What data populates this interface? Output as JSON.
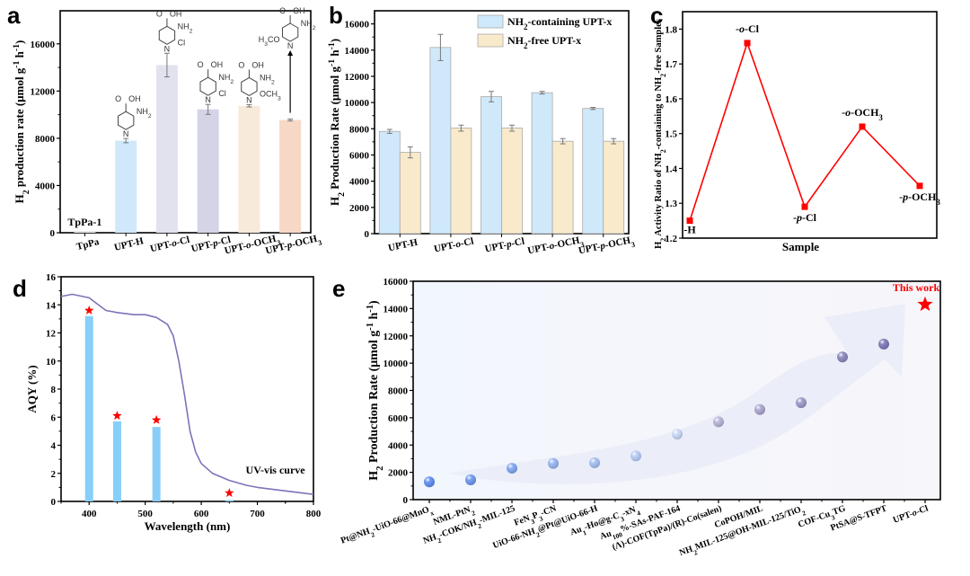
{
  "figure": {
    "panels": [
      "a",
      "b",
      "c",
      "d",
      "e"
    ]
  },
  "chart_data": [
    {
      "id": "a",
      "type": "bar",
      "panel_label": "a",
      "title": "",
      "xlabel": "",
      "ylabel": "H2 production rate (μmol g-1 h-1)",
      "ylabel_parts": {
        "pre": "H",
        "sub": "2",
        "post": " production rate (μmol g",
        "sup1": "-1",
        "mid": " h",
        "sup2": "-1",
        "end": ")"
      },
      "ylim": [
        0,
        18800
      ],
      "yticks": [
        0,
        4000,
        8000,
        12000,
        16000
      ],
      "categories": [
        "TpPa",
        "UPT-H",
        "UPT-o-Cl",
        "UPT-p-Cl",
        "UPT-o-OCH3",
        "UPT-p-OCH3"
      ],
      "values": [
        150,
        7800,
        14200,
        10450,
        10750,
        9550
      ],
      "errors": [
        0,
        180,
        1000,
        420,
        100,
        80
      ],
      "colors": [
        "#e6e6e6",
        "#cfe9fb",
        "#e2e2ef",
        "#d5d3e6",
        "#f8eadb",
        "#f7d8c6"
      ],
      "annotations": [
        {
          "category": "TpPa",
          "text": "TpPa-1"
        }
      ],
      "structures": [
        {
          "category": "UPT-H",
          "substituents": [
            "O=C-OH",
            "NH2",
            "N"
          ]
        },
        {
          "category": "UPT-o-Cl",
          "substituents": [
            "O=C-OH",
            "NH2",
            "N",
            "Cl"
          ]
        },
        {
          "category": "UPT-p-Cl",
          "substituents": [
            "O=C-OH",
            "NH2",
            "Cl",
            "N"
          ]
        },
        {
          "category": "UPT-o-OCH3",
          "substituents": [
            "O=C-OH",
            "NH2",
            "N",
            "OCH3"
          ]
        },
        {
          "category": "UPT-p-OCH3",
          "substituents": [
            "O=C-OH",
            "NH2",
            "H3CO",
            "N"
          ]
        }
      ],
      "grid": false
    },
    {
      "id": "b",
      "type": "bar",
      "panel_label": "b",
      "title": "",
      "xlabel": "",
      "ylabel": "H2 Production Rate (μmol g-1 h-1)",
      "ylabel_parts": {
        "pre": "H",
        "sub": "2",
        "post": " Production Rate (μmol g",
        "sup1": "-1",
        "mid": " h",
        "sup2": "-1",
        "end": ")"
      },
      "ylim": [
        0,
        17000
      ],
      "yticks": [
        0,
        2000,
        4000,
        6000,
        8000,
        10000,
        12000,
        14000,
        16000
      ],
      "categories": [
        "UPT-H",
        "UPT-o-Cl",
        "UPT-p-Cl",
        "UPT-o-OCH3",
        "UPT-p-OCH3"
      ],
      "series": [
        {
          "name": "NH2-containing UPT-x",
          "legend": {
            "pre": "NH",
            "sub": "2",
            "post": "-containing UPT-x"
          },
          "color": "#cfe9fb",
          "values": [
            7800,
            14200,
            10450,
            10750,
            9550
          ],
          "errors": [
            150,
            1000,
            400,
            100,
            80
          ]
        },
        {
          "name": "NH2-free UPT-x",
          "legend": {
            "pre": "NH",
            "sub": "2",
            "post": "-free UPT-x"
          },
          "color": "#f8eacb",
          "values": [
            6200,
            8050,
            8050,
            7050,
            7050
          ],
          "errors": [
            420,
            230,
            230,
            200,
            200
          ]
        }
      ],
      "legend_position": "top-right",
      "grid": false
    },
    {
      "id": "c",
      "type": "line",
      "panel_label": "c",
      "title": "",
      "xlabel": "Sample",
      "ylabel": "H2 Activity Ratio of NH2-containing to NH2-free Samples",
      "ylim": [
        1.2,
        1.85
      ],
      "yticks": [
        1.2,
        1.3,
        1.4,
        1.5,
        1.6,
        1.7,
        1.8
      ],
      "x": [
        "-H",
        "-o-Cl",
        "-p-Cl",
        "-o-OCH3",
        "-p-OCH3"
      ],
      "values": [
        1.25,
        1.76,
        1.29,
        1.52,
        1.35
      ],
      "point_labels": [
        "-H",
        "-o-Cl",
        "-p-Cl",
        "-o-OCH3",
        "-p-OCH3"
      ],
      "color": "#ff0000",
      "grid": false
    },
    {
      "id": "d",
      "type": "bar",
      "panel_label": "d",
      "title": "",
      "xlabel": "Wavelength (nm)",
      "ylabel": "AQY (%)",
      "xlim": [
        350,
        800
      ],
      "ylim": [
        0,
        16
      ],
      "xticks": [
        400,
        500,
        600,
        700,
        800
      ],
      "yticks": [
        0,
        2,
        4,
        6,
        8,
        10,
        12,
        14,
        16
      ],
      "bars": {
        "x": [
          400,
          450,
          520,
          650
        ],
        "values": [
          13.2,
          5.7,
          5.3,
          0.1
        ],
        "color": "#87cefa"
      },
      "stars": {
        "x": [
          400,
          450,
          520,
          650
        ],
        "values": [
          13.6,
          6.1,
          5.8,
          0.6
        ],
        "color": "#ff0000"
      },
      "curve": {
        "name": "UV-vis curve",
        "color": "#7b74b8",
        "x": [
          350,
          370,
          400,
          410,
          430,
          450,
          480,
          500,
          520,
          540,
          550,
          560,
          570,
          580,
          590,
          600,
          620,
          650,
          680,
          700,
          750,
          800
        ],
        "values": [
          14.6,
          14.75,
          14.5,
          14.2,
          13.6,
          13.45,
          13.3,
          13.3,
          13.1,
          12.6,
          11.8,
          10.0,
          7.6,
          5.0,
          3.5,
          2.7,
          2.0,
          1.5,
          1.15,
          1.0,
          0.75,
          0.5
        ]
      },
      "curve_label": "UV-vis curve",
      "grid": false
    },
    {
      "id": "e",
      "type": "scatter",
      "panel_label": "e",
      "title": "",
      "xlabel": "",
      "ylabel": "H2 Production Rate (μmol g-1 h-1)",
      "ylabel_parts": {
        "pre": "H",
        "sub": "2",
        "post": " Production Rate (μmol g",
        "sup1": "-1",
        "mid": " h",
        "sup2": "-1",
        "end": ")"
      },
      "ylim": [
        0,
        16000
      ],
      "yticks": [
        0,
        2000,
        4000,
        6000,
        8000,
        10000,
        12000,
        14000,
        16000
      ],
      "categories": [
        "Pt@NH2-UiO-66@MnOx",
        "NML-PtN2",
        "NH2-COK/NH2-MIL-125",
        "FeN3P3-CN",
        "UiO-66-NH2@Pt@UiO-66-H",
        "Au1-Ho@g-C3-xN4",
        "Au100%-SAs-PAF-164",
        "(Λ)-COF(TpPa)/(R)-Co(salen)",
        "CoPOH/MIL",
        "NH2MIL-125@OH-MIL-125/TiO2",
        "COF-Cu3TG",
        "PtSA@S-TFPT",
        "UPT-o-Cl"
      ],
      "values": [
        1300,
        1450,
        2300,
        2650,
        2700,
        3200,
        4800,
        5700,
        6600,
        7100,
        10450,
        11400,
        14300
      ],
      "point_colors": [
        "#5b8cf0",
        "#6a95ee",
        "#7ea4f0",
        "#93b3f2",
        "#a3bef3",
        "#b4cbf6",
        "#c9d8f8",
        "#b6b3d6",
        "#a8a3cf",
        "#9a96c8",
        "#8984be",
        "#7c76b6",
        "#ff0000"
      ],
      "highlight": {
        "category": "UPT-o-Cl",
        "label": "This work",
        "marker": "star",
        "color": "#ff0000"
      },
      "grid": false
    }
  ]
}
